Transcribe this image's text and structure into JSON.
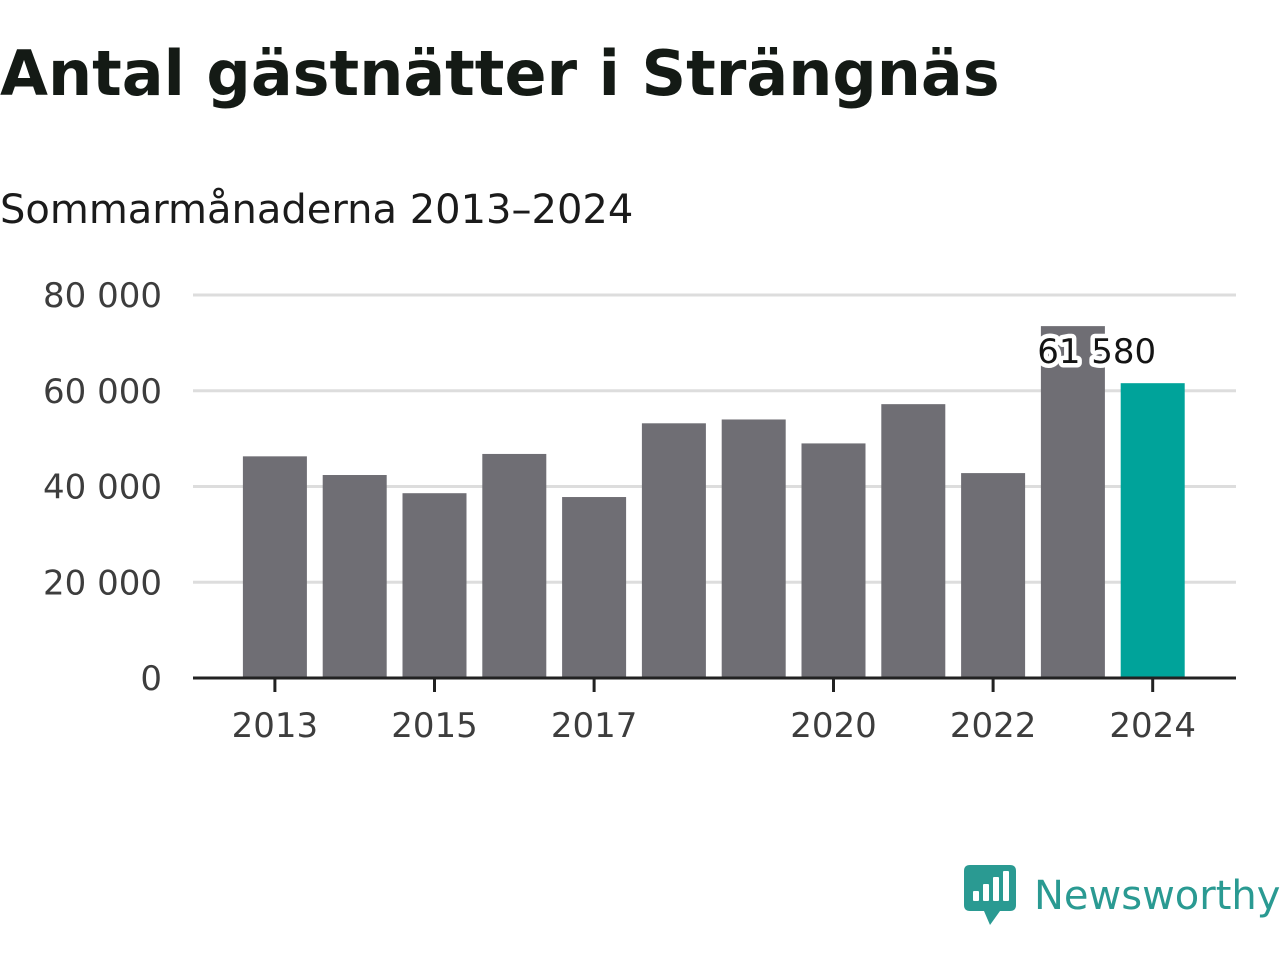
{
  "title": "Antal gästnätter i Strängnäs",
  "subtitle": "Sommarmånaderna 2013–2024",
  "brand": {
    "name": "Newsworthy",
    "icon": "newsworthy-logo-icon",
    "color": "#2a9a92"
  },
  "chart_data": {
    "type": "bar",
    "title": "Antal gästnätter i Strängnäs",
    "subtitle": "Sommarmånaderna 2013–2024",
    "xlabel": "",
    "ylabel": "",
    "categories": [
      "2013",
      "2014",
      "2015",
      "2016",
      "2017",
      "2018",
      "2019",
      "2020",
      "2021",
      "2022",
      "2023",
      "2024"
    ],
    "values": [
      46300,
      42400,
      38600,
      46800,
      37800,
      53200,
      54000,
      49000,
      57200,
      42800,
      73500,
      61580
    ],
    "x_tick_labels": [
      "2013",
      "2015",
      "2017",
      "2020",
      "2022",
      "2024"
    ],
    "y_ticks": [
      0,
      20000,
      40000,
      60000,
      80000
    ],
    "y_tick_labels": [
      "0",
      "20 000",
      "40 000",
      "60 000",
      "80 000"
    ],
    "ylim": [
      0,
      80000
    ],
    "grid": true,
    "colors": {
      "bar": "#6f6e74",
      "highlight": "#00a39a",
      "grid": "#dddddd",
      "axis": "#222222"
    },
    "highlight": {
      "category": "2024",
      "label": "61 580"
    }
  }
}
